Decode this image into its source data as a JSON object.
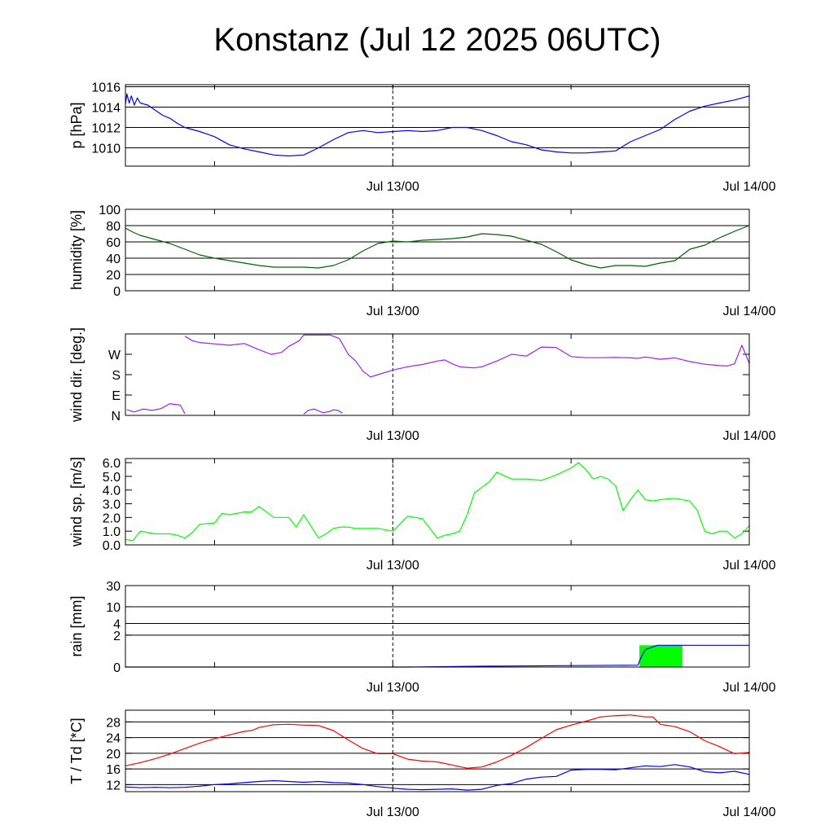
{
  "title": "Konstanz (Jul 12 2025 06UTC)",
  "x_axis": {
    "start": "Jul 12 06:00",
    "end": "Jul 14 00:00",
    "tick_labels": [
      "Jul 13/00",
      "Jul 14/00"
    ],
    "tick_positions": [
      "Jul 13 00:00",
      "Jul 14 00:00"
    ],
    "minor_ticks": [
      "Jul 12 12:00",
      "Jul 13 12:00"
    ],
    "dashed_marker": "Jul 13 00:00"
  },
  "chart_data": [
    {
      "type": "line",
      "name": "pressure",
      "ylabel": "p [hPa]",
      "ylim": [
        1008.2,
        1016.2
      ],
      "yticks": [
        1010,
        1012,
        1014,
        1016
      ],
      "ytick_labels": [
        "1010",
        "1012",
        "1014",
        "1016"
      ],
      "grid": true,
      "series": [
        {
          "color": "#0000ff",
          "x": [
            0,
            0.1,
            0.25,
            0.4,
            0.6,
            0.8,
            1,
            1.5,
            2,
            2.5,
            3,
            3.5,
            4,
            5,
            6,
            7,
            8,
            9,
            10,
            11,
            12,
            13,
            14,
            15,
            16,
            17,
            18,
            19,
            20,
            21,
            22,
            23,
            24,
            25,
            26,
            27,
            28,
            29,
            30,
            31,
            32,
            33,
            34,
            35,
            36,
            37,
            38,
            39,
            40,
            41,
            42
          ],
          "y": [
            1014.3,
            1015.3,
            1014.4,
            1015.1,
            1014.2,
            1014.9,
            1014.4,
            1014.2,
            1013.7,
            1013.2,
            1012.9,
            1012.4,
            1012.0,
            1011.6,
            1011.1,
            1010.3,
            1009.9,
            1009.6,
            1009.3,
            1009.2,
            1009.3,
            1010.0,
            1010.8,
            1011.5,
            1011.7,
            1011.5,
            1011.6,
            1011.7,
            1011.6,
            1011.7,
            1012.0,
            1012.0,
            1011.7,
            1011.2,
            1010.6,
            1010.3,
            1009.8,
            1009.6,
            1009.5,
            1009.5,
            1009.6,
            1009.7,
            1010.6,
            1011.2,
            1011.8,
            1012.8,
            1013.6,
            1014.1,
            1014.4,
            1014.7,
            1015.1
          ]
        }
      ]
    },
    {
      "type": "line",
      "name": "humidity",
      "ylabel": "humidity [%]",
      "ylim": [
        0,
        100
      ],
      "yticks": [
        0,
        20,
        40,
        60,
        80,
        100
      ],
      "ytick_labels": [
        "0",
        "20",
        "40",
        "60",
        "80",
        "100"
      ],
      "grid": true,
      "series": [
        {
          "color": "#006400",
          "x": [
            0,
            0.5,
            1,
            2,
            3,
            4,
            5,
            6,
            7,
            8,
            9,
            10,
            11,
            12,
            13,
            14,
            15,
            16,
            17,
            18,
            19,
            20,
            21,
            22,
            23,
            24,
            25,
            26,
            27,
            28,
            29,
            30,
            31,
            32,
            33,
            34,
            35,
            36,
            37,
            38,
            39,
            40,
            41,
            42
          ],
          "y": [
            77,
            72,
            68,
            63,
            58,
            51,
            44,
            40,
            37,
            34,
            31,
            29,
            29,
            29,
            28,
            31,
            38,
            49,
            58,
            61,
            60,
            62,
            63,
            64,
            66,
            70,
            69,
            67,
            62,
            57,
            48,
            38,
            32,
            28,
            31,
            31,
            30,
            34,
            37,
            51,
            56,
            65,
            73,
            80
          ]
        }
      ]
    },
    {
      "type": "line",
      "name": "wind direction",
      "ylabel": "wind dir. [deg.]",
      "ylim": [
        0,
        360
      ],
      "yticks": [
        0,
        90,
        180,
        270
      ],
      "ytick_labels": [
        "N",
        "E",
        "S",
        "W"
      ],
      "grid": false,
      "series": [
        {
          "color": "#a020f0",
          "x": [
            0.1,
            0.6,
            1.2,
            1.8,
            2.4,
            3.0,
            3.7,
            4.0
          ],
          "y": [
            25,
            15,
            28,
            22,
            30,
            52,
            45,
            8
          ]
        },
        {
          "color": "#a020f0",
          "x": [
            4.0,
            4.5,
            5,
            6,
            7,
            8,
            9,
            9.8,
            10.5,
            11,
            11.7,
            12,
            13,
            13.8,
            14.4
          ],
          "y": [
            350,
            330,
            322,
            316,
            310,
            318,
            290,
            270,
            278,
            305,
            330,
            355,
            355,
            355,
            340
          ]
        },
        {
          "color": "#a020f0",
          "x": [
            12.0,
            12.3,
            12.7,
            13.0,
            13.3,
            13.8,
            14.0,
            14.3,
            14.6
          ],
          "y": [
            5,
            22,
            28,
            20,
            12,
            18,
            25,
            22,
            10
          ]
        },
        {
          "color": "#a020f0",
          "x": [
            14.4,
            15,
            15.5,
            16,
            16.5,
            17,
            18,
            19,
            20,
            21,
            21.5,
            22,
            22.5,
            23,
            23.5,
            24,
            25,
            26,
            27,
            28,
            29,
            30,
            31,
            32,
            33,
            34,
            34.5,
            35,
            36,
            37,
            38,
            39,
            40,
            40.5,
            41,
            41.5,
            42
          ],
          "y": [
            340,
            270,
            240,
            195,
            170,
            180,
            200,
            215,
            225,
            240,
            245,
            228,
            215,
            212,
            210,
            215,
            240,
            270,
            262,
            302,
            300,
            260,
            255,
            255,
            256,
            254,
            252,
            258,
            248,
            254,
            238,
            226,
            220,
            218,
            228,
            310,
            230
          ]
        }
      ]
    },
    {
      "type": "line",
      "name": "wind speed",
      "ylabel": "wind sp. [m/s]",
      "ylim": [
        0,
        6.3
      ],
      "yticks": [
        0,
        1,
        2,
        3,
        4,
        5,
        6
      ],
      "ytick_labels": [
        "0.0",
        "1.0",
        "2.0",
        "3.0",
        "4.0",
        "5.0",
        "6.0"
      ],
      "grid": false,
      "series": [
        {
          "color": "#00ff00",
          "x": [
            0,
            0.5,
            1,
            1.5,
            2,
            3,
            3.5,
            4,
            4.5,
            5,
            6,
            6.5,
            7,
            8,
            8.5,
            9,
            10,
            11,
            11.5,
            12,
            13,
            13.5,
            14,
            14.5,
            15,
            15.5,
            16,
            17,
            18,
            19,
            20,
            21,
            21.5,
            22,
            22.5,
            23,
            23.5,
            24,
            24.5,
            25,
            26,
            27,
            28,
            29,
            30,
            30.5,
            31,
            31.5,
            32,
            32.5,
            33,
            33.5,
            34,
            34.5,
            35,
            35.5,
            36,
            37,
            38,
            38.5,
            39,
            39.5,
            40,
            40.5,
            41,
            41.5,
            42
          ],
          "y": [
            0.4,
            0.3,
            1.0,
            0.9,
            0.8,
            0.8,
            0.7,
            0.5,
            0.9,
            1.5,
            1.6,
            2.3,
            2.2,
            2.4,
            2.4,
            2.8,
            2.0,
            2.0,
            1.3,
            2.2,
            0.5,
            0.8,
            1.2,
            1.3,
            1.3,
            1.2,
            1.2,
            1.2,
            1.0,
            2.1,
            1.9,
            0.5,
            0.7,
            0.8,
            1.0,
            2.2,
            3.8,
            4.2,
            4.6,
            5.3,
            4.8,
            4.8,
            4.7,
            5.1,
            5.6,
            6.0,
            5.5,
            4.8,
            5.0,
            4.8,
            4.3,
            2.5,
            3.3,
            4.0,
            3.3,
            3.2,
            3.3,
            3.4,
            3.2,
            2.5,
            1.0,
            0.8,
            1.0,
            1.0,
            0.5,
            0.8,
            1.4
          ]
        }
      ]
    },
    {
      "type": "area",
      "name": "rain",
      "ylabel": "rain [mm]",
      "ylim": [
        0,
        30
      ],
      "yticks": [
        0,
        2,
        4,
        10,
        30
      ],
      "ytick_labels": [
        "0",
        "2",
        "4",
        "10",
        "30"
      ],
      "grid": true,
      "series": [
        {
          "color": "#00ff00",
          "kind": "bar",
          "x": [
            34.6,
            37.5
          ],
          "y": [
            1.0,
            1.0
          ]
        },
        {
          "color": "#0000ff",
          "kind": "line",
          "x": [
            0,
            19,
            24,
            34.5,
            34.7,
            35,
            35.8,
            42
          ],
          "y": [
            0,
            0,
            0.02,
            0.05,
            0.3,
            0.7,
            1.0,
            1.0
          ]
        }
      ]
    },
    {
      "type": "line",
      "name": "temperature",
      "ylabel": "T / Td [*C]",
      "ylim": [
        10.2,
        31.0
      ],
      "yticks": [
        12,
        16,
        20,
        24,
        28
      ],
      "ytick_labels": [
        "12",
        "16",
        "20",
        "24",
        "28"
      ],
      "grid": true,
      "series": [
        {
          "color": "#ff0000",
          "x": [
            0,
            1,
            2,
            3,
            4,
            5,
            6,
            7,
            8,
            8.5,
            9,
            10,
            11,
            12,
            13,
            14,
            15,
            16,
            17,
            18,
            19,
            20,
            21,
            22,
            23,
            24,
            25,
            26,
            27,
            28,
            29,
            30,
            31,
            32,
            33,
            34,
            35,
            35.5,
            36,
            37,
            38,
            39,
            40,
            41,
            42
          ],
          "y": [
            16.8,
            17.6,
            18.6,
            19.8,
            21.2,
            22.6,
            23.7,
            24.7,
            25.6,
            25.8,
            26.6,
            27.3,
            27.4,
            27.2,
            27.1,
            25.8,
            23.4,
            21.2,
            19.9,
            19.9,
            18.5,
            18.0,
            17.8,
            17.0,
            16.2,
            16.5,
            17.8,
            19.5,
            21.5,
            23.8,
            26.0,
            27.2,
            28.2,
            29.3,
            29.6,
            29.8,
            29.3,
            29.3,
            27.4,
            26.8,
            25.5,
            23.2,
            21.7,
            19.9,
            20.2
          ]
        },
        {
          "color": "#0000ff",
          "x": [
            0,
            1,
            2,
            3,
            4,
            5,
            6,
            7,
            8,
            9,
            10,
            11,
            12,
            13,
            14,
            15,
            16,
            17,
            18,
            19,
            20,
            21,
            22,
            23,
            24,
            25,
            26,
            27,
            28,
            29,
            30,
            31,
            32,
            33,
            34,
            35,
            36,
            37,
            38,
            39,
            40,
            41,
            42
          ],
          "y": [
            11.4,
            11.2,
            11.3,
            11.2,
            11.3,
            11.6,
            12.0,
            12.2,
            12.5,
            12.8,
            13.0,
            12.8,
            12.6,
            12.8,
            12.5,
            12.4,
            12.0,
            11.5,
            11.1,
            10.8,
            10.7,
            10.8,
            10.9,
            10.6,
            10.8,
            11.8,
            12.3,
            13.4,
            13.9,
            14.1,
            15.7,
            15.9,
            15.9,
            15.8,
            16.3,
            16.8,
            16.6,
            17.1,
            16.5,
            15.3,
            15.0,
            15.4,
            14.6
          ]
        }
      ]
    }
  ]
}
